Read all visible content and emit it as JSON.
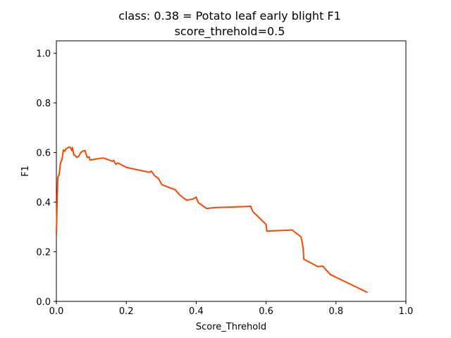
{
  "chart_data": {
    "type": "line",
    "title": "class: 0.38 = Potato leaf early blight F1",
    "subtitle": "score_threhold=0.5",
    "xlabel": "Score_Threhold",
    "ylabel": "F1",
    "xlim": [
      0.0,
      1.0
    ],
    "ylim": [
      0.0,
      1.05
    ],
    "xticks": [
      "0.0",
      "0.2",
      "0.4",
      "0.6",
      "0.8",
      "1.0"
    ],
    "yticks": [
      "0.0",
      "0.2",
      "0.4",
      "0.6",
      "0.8",
      "1.0"
    ],
    "grid": false,
    "line_color": "#ff4500",
    "series": [
      {
        "x": [
          0.0,
          0.004,
          0.008,
          0.012,
          0.016,
          0.02,
          0.024,
          0.028,
          0.032,
          0.036,
          0.04,
          0.044,
          0.046,
          0.05,
          0.054,
          0.058,
          0.064,
          0.07,
          0.076,
          0.082,
          0.088,
          0.094,
          0.096,
          0.098,
          0.11,
          0.134,
          0.16,
          0.164,
          0.17,
          0.176,
          0.2,
          0.266,
          0.272,
          0.28,
          0.292,
          0.302,
          0.34,
          0.352,
          0.372,
          0.39,
          0.4,
          0.406,
          0.43,
          0.44,
          0.46,
          0.54,
          0.556,
          0.562,
          0.6,
          0.602,
          0.664,
          0.674,
          0.7,
          0.704,
          0.706,
          0.708,
          0.748,
          0.762,
          0.784,
          0.89
        ],
        "y": [
          0.27,
          0.5,
          0.51,
          0.56,
          0.57,
          0.61,
          0.605,
          0.615,
          0.618,
          0.622,
          0.62,
          0.608,
          0.62,
          0.59,
          0.588,
          0.58,
          0.585,
          0.6,
          0.606,
          0.608,
          0.58,
          0.582,
          0.57,
          0.57,
          0.573,
          0.578,
          0.565,
          0.568,
          0.552,
          0.558,
          0.54,
          0.52,
          0.525,
          0.508,
          0.495,
          0.47,
          0.45,
          0.43,
          0.408,
          0.412,
          0.42,
          0.398,
          0.374,
          0.376,
          0.378,
          0.382,
          0.383,
          0.362,
          0.31,
          0.283,
          0.287,
          0.288,
          0.26,
          0.232,
          0.212,
          0.17,
          0.14,
          0.142,
          0.108,
          0.036
        ]
      }
    ]
  }
}
